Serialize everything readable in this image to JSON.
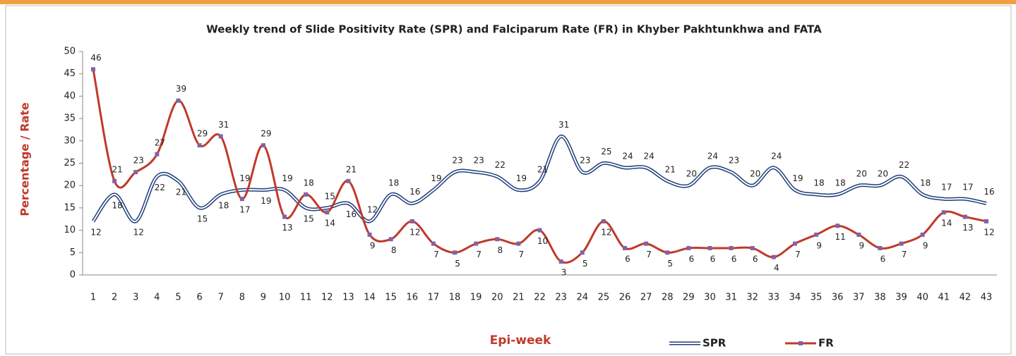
{
  "chart_data": {
    "type": "line",
    "title": "Weekly trend of Slide Positivity Rate (SPR) and Falciparum Rate (FR) in Khyber Pakhtunkhwa and FATA",
    "x_label": "Epi-week",
    "y_label": "Percentage / Rate",
    "categories": [
      "1",
      "2",
      "3",
      "4",
      "5",
      "6",
      "7",
      "8",
      "9",
      "10",
      "11",
      "12",
      "13",
      "14",
      "15",
      "16",
      "17",
      "18",
      "19",
      "20",
      "21",
      "22",
      "23",
      "24",
      "25",
      "26",
      "27",
      "28",
      "29",
      "30",
      "31",
      "32",
      "33",
      "34",
      "35",
      "36",
      "37",
      "38",
      "39",
      "40",
      "41",
      "42",
      "43"
    ],
    "series": [
      {
        "name": "SPR",
        "color": "#1f3f7a",
        "values": [
          12,
          18,
          12,
          22,
          21,
          15,
          18,
          19,
          19,
          19,
          15,
          15,
          16,
          12,
          18,
          16,
          19,
          23,
          23,
          22,
          19,
          21,
          31,
          23,
          25,
          24,
          24,
          21,
          20,
          24,
          23,
          20,
          24,
          19,
          18,
          18,
          20,
          20,
          22,
          18,
          17,
          17,
          16
        ]
      },
      {
        "name": "FR",
        "color": "#c0392b",
        "marker_color": "#8064a2",
        "values": [
          46,
          21,
          23,
          27,
          39,
          29,
          31,
          17,
          29,
          13,
          18,
          14,
          21,
          9,
          8,
          12,
          7,
          5,
          7,
          8,
          7,
          10,
          3,
          5,
          12,
          6,
          7,
          5,
          6,
          6,
          6,
          6,
          4,
          7,
          9,
          11,
          9,
          6,
          7,
          9,
          14,
          13,
          12
        ]
      }
    ],
    "ylim": [
      0,
      50
    ],
    "yticks": [
      0,
      5,
      10,
      15,
      20,
      25,
      30,
      35,
      40,
      45,
      50
    ],
    "grid": false,
    "legend": "bottom"
  }
}
